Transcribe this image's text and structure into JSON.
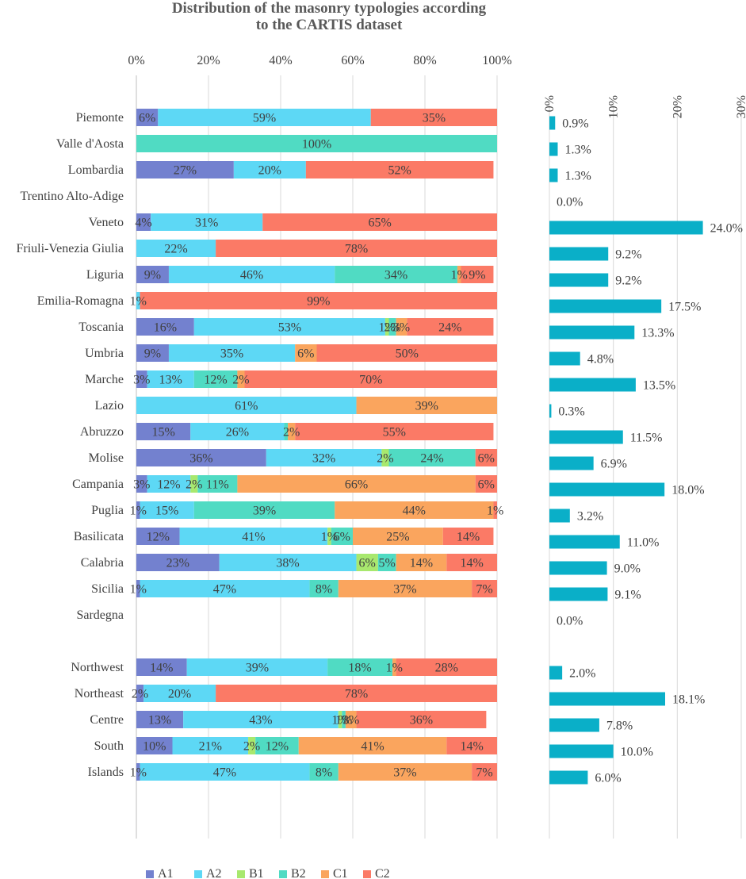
{
  "chart_data": [
    {
      "type": "bar",
      "stacked": true,
      "orientation": "horizontal",
      "title_lines": [
        "Distribution of the masonry typologies according",
        "to the CARTIS dataset"
      ],
      "xlim": [
        0,
        100
      ],
      "xticks": [
        "0%",
        "20%",
        "40%",
        "60%",
        "80%",
        "100%"
      ],
      "legend_position": "bottom",
      "categories": [
        "Piemonte",
        "Valle d'Aosta",
        "Lombardia",
        "Trentino Alto-Adige",
        "Veneto",
        "Friuli-Venezia Giulia",
        "Liguria",
        "Emilia-Romagna",
        "Toscania",
        "Umbria",
        "Marche",
        "Lazio",
        "Abruzzo",
        "Molise",
        "Campania",
        "Puglia",
        "Basilicata",
        "Calabria",
        "Sicilia",
        "Sardegna",
        "",
        "Northwest",
        "Northeast",
        "Centre",
        "South",
        "Islands"
      ],
      "series": [
        {
          "name": "A1",
          "color": "#7381CF",
          "values": [
            6,
            0,
            27,
            0,
            4,
            0,
            9,
            0,
            16,
            9,
            3,
            0,
            15,
            36,
            3,
            1,
            12,
            23,
            1,
            0,
            0,
            14,
            2,
            13,
            10,
            1
          ]
        },
        {
          "name": "A2",
          "color": "#5DD8F5",
          "values": [
            59,
            0,
            20,
            0,
            31,
            22,
            46,
            1,
            53,
            35,
            13,
            61,
            26,
            32,
            12,
            15,
            41,
            38,
            47,
            0,
            0,
            39,
            20,
            43,
            21,
            47
          ]
        },
        {
          "name": "B1",
          "color": "#A8E86E",
          "values": [
            0,
            0,
            0,
            0,
            0,
            0,
            0,
            0,
            1,
            0,
            0,
            0,
            0,
            2,
            2,
            0,
            1,
            6,
            0,
            0,
            0,
            0,
            0,
            1,
            2,
            0
          ]
        },
        {
          "name": "B2",
          "color": "#50DBC3",
          "values": [
            0,
            100,
            0,
            0,
            0,
            0,
            34,
            0,
            2,
            0,
            12,
            0,
            1,
            24,
            11,
            39,
            6,
            5,
            8,
            0,
            0,
            18,
            0,
            1,
            12,
            8
          ]
        },
        {
          "name": "C1",
          "color": "#FAA55E",
          "values": [
            0,
            0,
            0,
            0,
            0,
            0,
            1,
            0,
            3,
            6,
            2,
            39,
            2,
            0,
            66,
            44,
            25,
            14,
            37,
            0,
            0,
            1,
            0,
            3,
            41,
            37
          ]
        },
        {
          "name": "C2",
          "color": "#FB7A66",
          "values": [
            35,
            0,
            52,
            0,
            65,
            78,
            9,
            99,
            24,
            50,
            70,
            0,
            55,
            6,
            6,
            1,
            14,
            14,
            7,
            0,
            0,
            28,
            78,
            36,
            14,
            7
          ]
        }
      ],
      "segment_labels": [
        [
          "6%",
          "59%",
          "",
          "",
          "",
          "35%"
        ],
        [
          "",
          "",
          "",
          "100%",
          "",
          ""
        ],
        [
          "27%",
          "20%",
          "",
          "",
          "",
          "52%"
        ],
        [
          "",
          "",
          "",
          "",
          "",
          ""
        ],
        [
          "4%",
          "31%",
          "",
          "",
          "",
          "65%"
        ],
        [
          "",
          "22%",
          "",
          "",
          "",
          "78%"
        ],
        [
          "9%",
          "46%",
          "",
          "34%",
          "1%",
          "9%"
        ],
        [
          "",
          "1%",
          "",
          "",
          "",
          "99%"
        ],
        [
          "16%",
          "53%",
          "1%",
          "2%",
          "3%",
          "24%"
        ],
        [
          "9%",
          "35%",
          "",
          "",
          "6%",
          "50%"
        ],
        [
          "3%",
          "13%",
          "",
          "12%",
          "2%",
          "70%"
        ],
        [
          "",
          "61%",
          "",
          "",
          "39%",
          ""
        ],
        [
          "15%",
          "26%",
          "",
          "",
          "2%",
          "55%"
        ],
        [
          "36%",
          "32%",
          "2%",
          "24%",
          "",
          "6%"
        ],
        [
          "3%",
          "12%",
          "2%",
          "11%",
          "66%",
          "6%"
        ],
        [
          "1%",
          "15%",
          "",
          "39%",
          "44%",
          "1%"
        ],
        [
          "12%",
          "41%",
          "1%",
          "6%",
          "25%",
          "14%"
        ],
        [
          "23%",
          "38%",
          "6%",
          "5%",
          "14%",
          "14%"
        ],
        [
          "1%",
          "47%",
          "",
          "8%",
          "37%",
          "7%"
        ],
        [
          "",
          "",
          "",
          "",
          "",
          ""
        ],
        [
          "",
          "",
          "",
          "",
          "",
          ""
        ],
        [
          "14%",
          "39%",
          "",
          "18%",
          "1%",
          "28%"
        ],
        [
          "2%",
          "20%",
          "",
          "",
          "",
          "78%"
        ],
        [
          "13%",
          "43%",
          "1%",
          "1%",
          "3%",
          "36%"
        ],
        [
          "10%",
          "21%",
          "2%",
          "12%",
          "41%",
          "14%"
        ],
        [
          "1%",
          "47%",
          "",
          "8%",
          "37%",
          "7%"
        ]
      ]
    },
    {
      "type": "bar",
      "orientation": "horizontal",
      "xlim": [
        0,
        30
      ],
      "xticks": [
        "0%",
        "10%",
        "20%",
        "30%"
      ],
      "bar_color": "#0AAFC8",
      "categories": [
        "Piemonte",
        "Valle d'Aosta",
        "Lombardia",
        "Trentino Alto-Adige",
        "Veneto",
        "Friuli-Venezia Giulia",
        "Liguria",
        "Emilia-Romagna",
        "Toscania",
        "Umbria",
        "Marche",
        "Lazio",
        "Abruzzo",
        "Molise",
        "Campania",
        "Puglia",
        "Basilicata",
        "Calabria",
        "Sicilia",
        "Sardegna",
        "",
        "Northwest",
        "Northeast",
        "Centre",
        "South",
        "Islands"
      ],
      "values": [
        0.9,
        1.3,
        1.3,
        0.0,
        24.0,
        9.2,
        9.2,
        17.5,
        13.3,
        4.8,
        13.5,
        0.3,
        11.5,
        6.9,
        18.0,
        3.2,
        11.0,
        9.0,
        9.1,
        0.0,
        null,
        2.0,
        18.1,
        7.8,
        10.0,
        6.0
      ],
      "labels": [
        "0.9%",
        "1.3%",
        "1.3%",
        "0.0%",
        "24.0%",
        "9.2%",
        "9.2%",
        "17.5%",
        "13.3%",
        "4.8%",
        "13.5%",
        "0.3%",
        "11.5%",
        "6.9%",
        "18.0%",
        "3.2%",
        "11.0%",
        "9.0%",
        "9.1%",
        "0.0%",
        "",
        "2.0%",
        "18.1%",
        "7.8%",
        "10.0%",
        "6.0%"
      ]
    }
  ]
}
